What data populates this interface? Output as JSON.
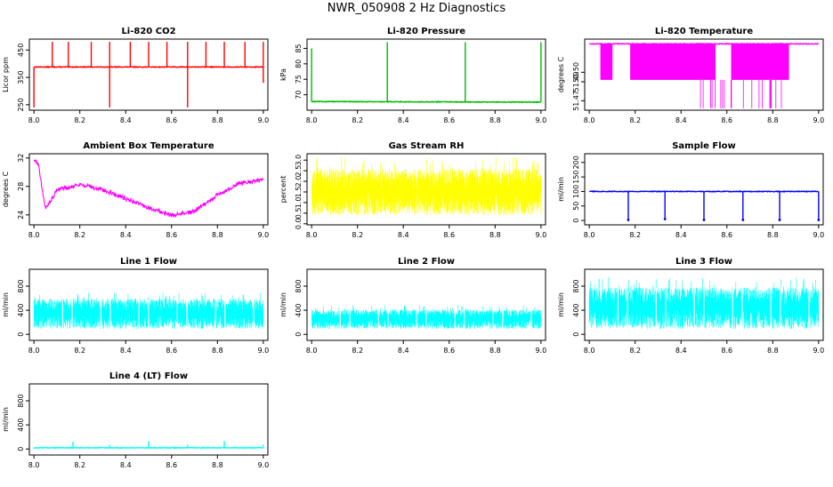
{
  "page_title": "NWR_050908  2 Hz Diagnostics",
  "chart_data": [
    {
      "type": "line",
      "title": "Li-820 CO2",
      "xlabel": "",
      "ylabel": "Licor ppm",
      "xlim": [
        7.98,
        9.02
      ],
      "ylim": [
        230,
        490
      ],
      "xticks": [
        "8.0",
        "8.2",
        "8.4",
        "8.6",
        "8.8",
        "9.0"
      ],
      "yticks": [
        "250",
        "350",
        "450"
      ],
      "color": "#ff0000",
      "series": [
        {
          "name": "baseline",
          "x": [
            8.0,
            9.0
          ],
          "values": [
            388,
            388
          ]
        },
        {
          "name": "spikes_up",
          "x": [
            8.08,
            8.15,
            8.25,
            8.33,
            8.42,
            8.5,
            8.58,
            8.67,
            8.75,
            8.83,
            8.92,
            9.0
          ],
          "values": [
            480,
            480,
            480,
            480,
            480,
            480,
            480,
            480,
            480,
            480,
            480,
            480
          ]
        },
        {
          "name": "spikes_down",
          "x": [
            8.0,
            8.33,
            8.67,
            9.0
          ],
          "values": [
            240,
            240,
            240,
            330
          ]
        }
      ]
    },
    {
      "type": "line",
      "title": "Li-820 Pressure",
      "xlabel": "",
      "ylabel": "kPa",
      "xlim": [
        7.98,
        9.02
      ],
      "ylim": [
        65,
        88
      ],
      "xticks": [
        "8.0",
        "8.2",
        "8.4",
        "8.6",
        "8.8",
        "9.0"
      ],
      "yticks": [
        "70",
        "75",
        "80",
        "85"
      ],
      "color": "#00bb00",
      "series": [
        {
          "name": "baseline",
          "x": [
            8.0,
            9.0
          ],
          "values": [
            67.8,
            67.6
          ]
        },
        {
          "name": "spikes_up",
          "x": [
            8.0,
            8.33,
            8.67,
            9.0
          ],
          "values": [
            85,
            87,
            87,
            87
          ]
        }
      ]
    },
    {
      "type": "line",
      "title": "Li-820 Temperature",
      "xlabel": "",
      "ylabel": "degrees C",
      "xlim": [
        7.98,
        9.02
      ],
      "ylim": [
        51.46,
        51.535
      ],
      "xticks": [
        "8.0",
        "8.2",
        "8.4",
        "8.6",
        "8.8",
        "9.0"
      ],
      "yticks": [
        "51.47",
        "51.49",
        "51.50"
      ],
      "color": "#ff00ff",
      "series": [
        {
          "name": "baseline",
          "x": [
            8.0,
            9.0
          ],
          "values": [
            51.53,
            51.53
          ]
        },
        {
          "name": "dense_low_bands",
          "x": [
            [
              8.05,
              8.1
            ],
            [
              8.18,
              8.55
            ],
            [
              8.62,
              8.87
            ]
          ],
          "values": [
            51.492,
            51.492,
            51.492
          ]
        }
      ]
    },
    {
      "type": "line",
      "title": "Ambient Box Temperature",
      "xlabel": "",
      "ylabel": "degrees C",
      "xlim": [
        7.98,
        9.02
      ],
      "ylim": [
        22.6,
        32.6
      ],
      "xticks": [
        "8.0",
        "8.2",
        "8.4",
        "8.6",
        "8.8",
        "9.0"
      ],
      "yticks": [
        "24",
        "28",
        "32"
      ],
      "color": "#ff00ff",
      "series": [
        {
          "name": "box temperature",
          "x": [
            8.0,
            8.02,
            8.05,
            8.1,
            8.2,
            8.3,
            8.4,
            8.5,
            8.6,
            8.7,
            8.8,
            8.9,
            9.0
          ],
          "values": [
            31.8,
            31.0,
            24.8,
            27.5,
            28.3,
            27.5,
            26.3,
            25.0,
            23.9,
            24.5,
            26.8,
            28.5,
            28.9
          ]
        }
      ]
    },
    {
      "type": "line",
      "title": "Gas Stream RH",
      "xlabel": "",
      "ylabel": "percent",
      "xlim": [
        7.98,
        9.02
      ],
      "ylim": [
        -0.05,
        3.3
      ],
      "xticks": [
        "8.0",
        "8.2",
        "8.4",
        "8.6",
        "8.8",
        "9.0"
      ],
      "yticks": [
        "0.0",
        "0.5",
        "1.0",
        "1.5",
        "2.0",
        "2.5",
        "3.0"
      ],
      "color": "#ffff00",
      "series": [
        {
          "name": "rh_band",
          "x": [
            8.0,
            9.0
          ],
          "low": [
            0.4,
            0.4
          ],
          "high": [
            2.6,
            2.6
          ]
        }
      ]
    },
    {
      "type": "line",
      "title": "Sample Flow",
      "xlabel": "",
      "ylabel": "ml/min",
      "xlim": [
        7.98,
        9.02
      ],
      "ylim": [
        -15,
        230
      ],
      "xticks": [
        "8.0",
        "8.2",
        "8.4",
        "8.6",
        "8.8",
        "9.0"
      ],
      "yticks": [
        "0",
        "50",
        "100",
        "150",
        "200"
      ],
      "color": "#0000ff",
      "series": [
        {
          "name": "baseline",
          "x": [
            8.0,
            9.0
          ],
          "values": [
            100,
            100
          ]
        },
        {
          "name": "dips",
          "x": [
            8.17,
            8.33,
            8.5,
            8.67,
            8.83,
            9.0
          ],
          "values": [
            2,
            5,
            2,
            2,
            2,
            2
          ]
        }
      ]
    },
    {
      "type": "line",
      "title": "Line 1 Flow",
      "xlabel": "",
      "ylabel": "ml/min",
      "xlim": [
        7.98,
        9.02
      ],
      "ylim": [
        -100,
        1080
      ],
      "xticks": [
        "8.0",
        "8.2",
        "8.4",
        "8.6",
        "8.8",
        "9.0"
      ],
      "yticks": [
        "0",
        "400",
        "800"
      ],
      "color": "#00ffff",
      "series": [
        {
          "name": "flow_band",
          "x": [
            8.0,
            9.0
          ],
          "low": [
            90,
            90
          ],
          "high": [
            590,
            590
          ]
        }
      ]
    },
    {
      "type": "line",
      "title": "Line 2 Flow",
      "xlabel": "",
      "ylabel": "ml/min",
      "xlim": [
        7.98,
        9.02
      ],
      "ylim": [
        -100,
        1080
      ],
      "xticks": [
        "8.0",
        "8.2",
        "8.4",
        "8.6",
        "8.8",
        "9.0"
      ],
      "yticks": [
        "0",
        "400",
        "800"
      ],
      "color": "#00ffff",
      "series": [
        {
          "name": "flow_band",
          "x": [
            8.0,
            9.0
          ],
          "low": [
            90,
            90
          ],
          "high": [
            410,
            410
          ]
        }
      ]
    },
    {
      "type": "line",
      "title": "Line 3 Flow",
      "xlabel": "",
      "ylabel": "ml/min",
      "xlim": [
        7.98,
        9.02
      ],
      "ylim": [
        -100,
        1080
      ],
      "xticks": [
        "8.0",
        "8.2",
        "8.4",
        "8.6",
        "8.8",
        "9.0"
      ],
      "yticks": [
        "0",
        "400",
        "800"
      ],
      "color": "#00ffff",
      "series": [
        {
          "name": "flow_band",
          "x": [
            8.0,
            9.0
          ],
          "low": [
            90,
            90
          ],
          "high": [
            780,
            780
          ]
        }
      ]
    },
    {
      "type": "line",
      "title": "Line 4 (LT) Flow",
      "xlabel": "",
      "ylabel": "ml/min",
      "xlim": [
        7.98,
        9.02
      ],
      "ylim": [
        -100,
        1080
      ],
      "xticks": [
        "8.0",
        "8.2",
        "8.4",
        "8.6",
        "8.8",
        "9.0"
      ],
      "yticks": [
        "0",
        "400",
        "800"
      ],
      "color": "#00ffff",
      "series": [
        {
          "name": "baseline",
          "x": [
            8.0,
            9.0
          ],
          "values": [
            20,
            20
          ]
        },
        {
          "name": "spikes_up",
          "x": [
            8.17,
            8.33,
            8.5,
            8.67,
            8.83,
            9.0
          ],
          "values": [
            120,
            70,
            130,
            70,
            130,
            70
          ]
        }
      ]
    }
  ]
}
